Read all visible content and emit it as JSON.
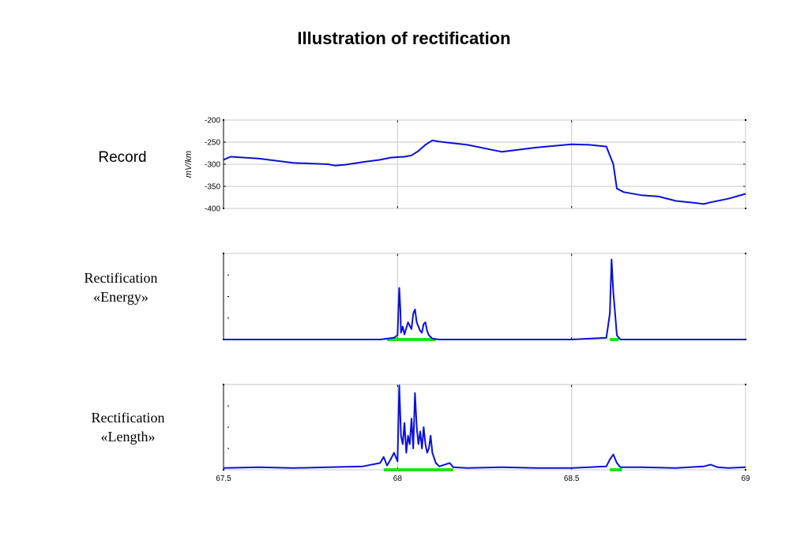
{
  "title": "Illustration of rectification",
  "labels": {
    "record": "Record",
    "energy_line1": "Rectification",
    "energy_line2": "«Energy»",
    "length_line1": "Rectification",
    "length_line2": "«Length»"
  },
  "colors": {
    "signal": "#0a10d8",
    "highlight": "#22e01e",
    "grid": "#c8c8c8",
    "axis": "#000000"
  },
  "chart_data": [
    {
      "type": "line",
      "panel": "record",
      "title": "",
      "xlabel": "",
      "ylabel": "mV/km",
      "xlim": [
        67.5,
        69
      ],
      "ylim": [
        -400,
        -200
      ],
      "yticks": [
        -200,
        -250,
        -300,
        -350,
        -400
      ],
      "ytick_labels": [
        "-200",
        "-250",
        "-300",
        "-350",
        "-400"
      ],
      "grid": true,
      "series": [
        {
          "x": [
            67.5,
            67.52,
            67.6,
            67.7,
            67.8,
            67.82,
            67.85,
            67.9,
            67.95,
            67.98,
            68.0,
            68.02,
            68.04,
            68.06,
            68.08,
            68.1,
            68.12,
            68.2,
            68.3,
            68.4,
            68.5,
            68.55,
            68.6,
            68.62,
            68.63,
            68.65,
            68.7,
            68.75,
            68.8,
            68.85,
            68.88,
            68.9,
            68.95,
            69.0
          ],
          "y": [
            -290,
            -283,
            -287,
            -297,
            -300,
            -303,
            -301,
            -295,
            -290,
            -285,
            -284,
            -283,
            -280,
            -270,
            -256,
            -246,
            -249,
            -256,
            -272,
            -262,
            -255,
            -256,
            -260,
            -300,
            -355,
            -363,
            -370,
            -373,
            -383,
            -387,
            -390,
            -386,
            -378,
            -367
          ]
        }
      ]
    },
    {
      "type": "line",
      "panel": "energy",
      "title": "",
      "xlabel": "",
      "ylabel": "",
      "xlim": [
        67.5,
        69
      ],
      "ylim": [
        0,
        1
      ],
      "grid": true,
      "series": [
        {
          "x": [
            67.5,
            67.95,
            67.99,
            68.0,
            68.005,
            68.008,
            68.01,
            68.015,
            68.02,
            68.03,
            68.04,
            68.045,
            68.05,
            68.055,
            68.06,
            68.065,
            68.07,
            68.075,
            68.08,
            68.085,
            68.09,
            68.1,
            68.12,
            68.5,
            68.6,
            68.61,
            68.615,
            68.62,
            68.625,
            68.63,
            68.64,
            68.7,
            69.0
          ],
          "y": [
            0,
            0,
            0.02,
            0.05,
            0.6,
            0.35,
            0.08,
            0.15,
            0.06,
            0.2,
            0.12,
            0.3,
            0.35,
            0.2,
            0.15,
            0.1,
            0.08,
            0.18,
            0.2,
            0.1,
            0.05,
            0.01,
            0,
            0,
            0.02,
            0.3,
            0.93,
            0.55,
            0.3,
            0.05,
            0,
            0,
            0
          ]
        }
      ],
      "highlights": [
        [
          67.97,
          68.11
        ],
        [
          68.61,
          68.635
        ]
      ]
    },
    {
      "type": "line",
      "panel": "length",
      "title": "",
      "xlabel": "",
      "ylabel": "",
      "xlim": [
        67.5,
        69
      ],
      "ylim": [
        0,
        1
      ],
      "xticks": [
        67.5,
        68,
        68.5,
        69
      ],
      "xtick_labels": [
        "67.5",
        "68",
        "68.5",
        "69"
      ],
      "grid": true,
      "series": [
        {
          "x": [
            67.5,
            67.6,
            67.7,
            67.8,
            67.9,
            67.95,
            67.96,
            67.97,
            67.98,
            67.99,
            68.0,
            68.005,
            68.01,
            68.015,
            68.02,
            68.025,
            68.03,
            68.035,
            68.04,
            68.045,
            68.05,
            68.055,
            68.06,
            68.065,
            68.07,
            68.075,
            68.08,
            68.085,
            68.09,
            68.095,
            68.1,
            68.11,
            68.12,
            68.15,
            68.16,
            68.2,
            68.3,
            68.4,
            68.5,
            68.55,
            68.6,
            68.61,
            68.62,
            68.63,
            68.64,
            68.7,
            68.8,
            68.88,
            68.9,
            68.92,
            68.95,
            69.0
          ],
          "y": [
            0.02,
            0.03,
            0.02,
            0.03,
            0.04,
            0.08,
            0.15,
            0.05,
            0.12,
            0.2,
            0.1,
            0.99,
            0.4,
            0.3,
            0.55,
            0.2,
            0.4,
            0.3,
            0.6,
            0.25,
            0.9,
            0.5,
            0.3,
            0.45,
            0.25,
            0.5,
            0.3,
            0.2,
            0.25,
            0.4,
            0.2,
            0.08,
            0.04,
            0.08,
            0.03,
            0.02,
            0.03,
            0.02,
            0.02,
            0.03,
            0.04,
            0.12,
            0.18,
            0.08,
            0.03,
            0.03,
            0.02,
            0.04,
            0.06,
            0.03,
            0.02,
            0.03
          ]
        }
      ],
      "highlights": [
        [
          67.96,
          68.16
        ],
        [
          68.61,
          68.645
        ]
      ]
    }
  ]
}
